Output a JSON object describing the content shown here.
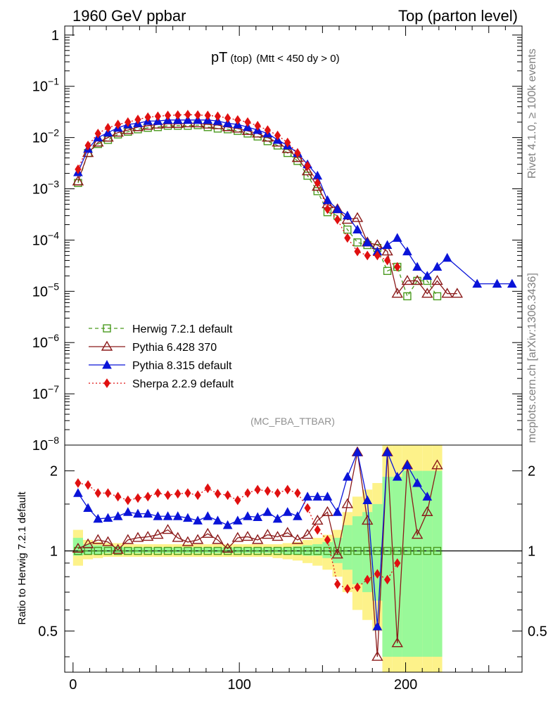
{
  "header": {
    "left": "1960 GeV ppbar",
    "right": "Top (parton level)"
  },
  "side": {
    "rivet": "Rivet 4.1.0, ≥ 100k events",
    "mcplots": "mcplots.cern.ch [arXiv:1306.3436]"
  },
  "colors": {
    "herwig": "#4a9a1e",
    "pythia6": "#8b1a1a",
    "pythia8": "#0a14d8",
    "sherpa": "#e01010",
    "band_inner": "#99f999",
    "band_outer": "#fdf28a"
  },
  "chart_data": [
    {
      "type": "line",
      "name": "main",
      "title_main": "pT",
      "title_sub": "(top)",
      "title_cut": "(Mtt < 450 dy > 0)",
      "watermark": "(MC_FBA_TTBAR)",
      "yscale": "log",
      "ylim": [
        1e-08,
        1.5
      ],
      "xlim": [
        -5,
        270
      ],
      "yticks": [
        {
          "v": 1,
          "label": "1"
        },
        {
          "v": 0.1,
          "label": "10",
          "sup": "−1"
        },
        {
          "v": 0.01,
          "label": "10",
          "sup": "−2"
        },
        {
          "v": 0.001,
          "label": "10",
          "sup": "−3"
        },
        {
          "v": 0.0001,
          "label": "10",
          "sup": "−4"
        },
        {
          "v": 1e-05,
          "label": "10",
          "sup": "−5"
        },
        {
          "v": 1e-06,
          "label": "10",
          "sup": "−6"
        },
        {
          "v": 1e-07,
          "label": "10",
          "sup": "−7"
        },
        {
          "v": 1e-08,
          "label": "10",
          "sup": "−8"
        }
      ],
      "legend": [
        {
          "key": "herwig",
          "label": "Herwig 7.2.1 default"
        },
        {
          "key": "pythia6",
          "label": "Pythia 6.428 370"
        },
        {
          "key": "pythia8",
          "label": "Pythia 8.315 default"
        },
        {
          "key": "sherpa",
          "label": "Sherpa 2.2.9 default"
        }
      ],
      "series": [
        {
          "key": "herwig",
          "name": "Herwig 7.2.1 default",
          "x": [
            3,
            9,
            15,
            21,
            27,
            33,
            39,
            45,
            51,
            57,
            63,
            69,
            75,
            81,
            87,
            93,
            99,
            105,
            111,
            117,
            123,
            129,
            135,
            141,
            147,
            153,
            159,
            165,
            171,
            177,
            183,
            189,
            195,
            201,
            207,
            213,
            219
          ],
          "y": [
            0.0013,
            0.005,
            0.0075,
            0.009,
            0.0115,
            0.013,
            0.0145,
            0.0155,
            0.016,
            0.017,
            0.017,
            0.017,
            0.0175,
            0.016,
            0.015,
            0.0145,
            0.0135,
            0.012,
            0.0105,
            0.0085,
            0.007,
            0.005,
            0.0035,
            0.0018,
            0.0009,
            0.00035,
            0.0003,
            0.00016,
            9e-05,
            8e-05,
            7e-05,
            2.5e-05,
            3e-05,
            8e-06,
            1.6e-05,
            1.6e-05,
            8e-06
          ]
        },
        {
          "key": "pythia6",
          "name": "Pythia 6.428 370",
          "x": [
            3,
            9,
            15,
            21,
            27,
            33,
            39,
            45,
            51,
            57,
            63,
            69,
            75,
            81,
            87,
            93,
            99,
            105,
            111,
            117,
            123,
            129,
            135,
            141,
            147,
            153,
            159,
            165,
            171,
            177,
            183,
            189,
            195,
            201,
            207,
            213,
            219,
            225,
            231
          ],
          "y": [
            0.0014,
            0.005,
            0.008,
            0.01,
            0.0125,
            0.014,
            0.016,
            0.017,
            0.018,
            0.0185,
            0.0185,
            0.019,
            0.019,
            0.018,
            0.0175,
            0.016,
            0.015,
            0.0135,
            0.012,
            0.01,
            0.008,
            0.006,
            0.004,
            0.0022,
            0.0011,
            0.0005,
            0.0004,
            0.00025,
            0.00027,
            9e-05,
            8e-05,
            6e-05,
            9e-06,
            1.6e-05,
            1.6e-05,
            9e-06,
            1.6e-05,
            9e-06,
            9e-06
          ]
        },
        {
          "key": "pythia8",
          "name": "Pythia 8.315 default",
          "x": [
            3,
            9,
            15,
            21,
            27,
            33,
            39,
            45,
            51,
            57,
            63,
            69,
            75,
            81,
            87,
            93,
            99,
            105,
            111,
            117,
            123,
            129,
            135,
            141,
            147,
            153,
            159,
            165,
            171,
            177,
            183,
            189,
            195,
            201,
            207,
            213,
            219,
            225,
            243,
            255,
            264
          ],
          "y": [
            0.0021,
            0.006,
            0.01,
            0.0125,
            0.0155,
            0.018,
            0.019,
            0.021,
            0.021,
            0.022,
            0.022,
            0.022,
            0.022,
            0.022,
            0.021,
            0.019,
            0.018,
            0.016,
            0.014,
            0.012,
            0.009,
            0.007,
            0.005,
            0.003,
            0.0018,
            0.0006,
            0.0004,
            0.0003,
            0.00016,
            9e-05,
            6e-05,
            8e-05,
            0.00011,
            6e-05,
            3e-05,
            2e-05,
            3e-05,
            4.5e-05,
            1.4e-05,
            1.4e-05,
            1.4e-05
          ]
        },
        {
          "key": "sherpa",
          "name": "Sherpa 2.2.9 default",
          "x": [
            3,
            9,
            15,
            21,
            27,
            33,
            39,
            45,
            51,
            57,
            63,
            69,
            75,
            81,
            87,
            93,
            99,
            105,
            111,
            117,
            123,
            129,
            135,
            141,
            147,
            153,
            159,
            165,
            171,
            177,
            183,
            189,
            195
          ],
          "y": [
            0.0024,
            0.007,
            0.012,
            0.0155,
            0.018,
            0.02,
            0.0225,
            0.025,
            0.026,
            0.027,
            0.0275,
            0.028,
            0.0275,
            0.027,
            0.026,
            0.024,
            0.022,
            0.02,
            0.017,
            0.014,
            0.011,
            0.008,
            0.005,
            0.0028,
            0.0013,
            0.0004,
            0.00025,
            0.00011,
            6e-05,
            5e-05,
            5e-05,
            4e-05,
            3e-05
          ]
        }
      ]
    },
    {
      "type": "line",
      "name": "ratio",
      "ylabel": "Ratio to Herwig 7.2.1 default",
      "yscale": "log",
      "ylim": [
        0.35,
        2.5
      ],
      "xlim": [
        -5,
        270
      ],
      "reference": 1,
      "yticks": [
        {
          "v": 0.5,
          "label": "0.5"
        },
        {
          "v": 1,
          "label": "1"
        },
        {
          "v": 2,
          "label": "2"
        }
      ],
      "xticks": [
        {
          "v": 0,
          "label": "0"
        },
        {
          "v": 100,
          "label": "100"
        },
        {
          "v": 200,
          "label": "200"
        }
      ],
      "band_x": [
        0,
        6,
        12,
        18,
        24,
        30,
        36,
        42,
        48,
        54,
        60,
        66,
        72,
        78,
        84,
        90,
        96,
        102,
        108,
        114,
        120,
        126,
        132,
        138,
        144,
        150,
        156,
        162,
        168,
        174,
        180,
        186,
        192,
        198,
        204,
        210,
        216,
        222
      ],
      "band_inner": [
        [
          0.96,
          1.12
        ],
        [
          0.97,
          1.06
        ],
        [
          0.97,
          1.05
        ],
        [
          0.98,
          1.04
        ],
        [
          0.98,
          1.04
        ],
        [
          0.98,
          1.03
        ],
        [
          0.98,
          1.03
        ],
        [
          0.98,
          1.03
        ],
        [
          0.98,
          1.03
        ],
        [
          0.98,
          1.03
        ],
        [
          0.98,
          1.03
        ],
        [
          0.98,
          1.03
        ],
        [
          0.98,
          1.03
        ],
        [
          0.98,
          1.03
        ],
        [
          0.98,
          1.03
        ],
        [
          0.98,
          1.03
        ],
        [
          0.98,
          1.03
        ],
        [
          0.98,
          1.03
        ],
        [
          0.98,
          1.03
        ],
        [
          0.98,
          1.03
        ],
        [
          0.98,
          1.03
        ],
        [
          0.97,
          1.03
        ],
        [
          0.97,
          1.04
        ],
        [
          0.96,
          1.05
        ],
        [
          0.96,
          1.06
        ],
        [
          0.94,
          1.08
        ],
        [
          0.9,
          1.12
        ],
        [
          0.85,
          1.25
        ],
        [
          0.75,
          1.35
        ],
        [
          0.7,
          1.4
        ],
        [
          0.65,
          1.5
        ],
        [
          0.4,
          1.9
        ],
        [
          0.4,
          1.9
        ],
        [
          0.4,
          2
        ],
        [
          0.4,
          2
        ],
        [
          0.4,
          2
        ],
        [
          0.4,
          2
        ]
      ],
      "band_outer": [
        [
          0.88,
          1.2
        ],
        [
          0.93,
          1.1
        ],
        [
          0.94,
          1.08
        ],
        [
          0.95,
          1.07
        ],
        [
          0.95,
          1.07
        ],
        [
          0.95,
          1.06
        ],
        [
          0.95,
          1.06
        ],
        [
          0.95,
          1.06
        ],
        [
          0.95,
          1.06
        ],
        [
          0.95,
          1.06
        ],
        [
          0.95,
          1.06
        ],
        [
          0.95,
          1.06
        ],
        [
          0.95,
          1.06
        ],
        [
          0.95,
          1.06
        ],
        [
          0.95,
          1.06
        ],
        [
          0.95,
          1.06
        ],
        [
          0.95,
          1.06
        ],
        [
          0.95,
          1.06
        ],
        [
          0.95,
          1.06
        ],
        [
          0.95,
          1.06
        ],
        [
          0.94,
          1.06
        ],
        [
          0.93,
          1.07
        ],
        [
          0.92,
          1.08
        ],
        [
          0.9,
          1.1
        ],
        [
          0.88,
          1.12
        ],
        [
          0.85,
          1.15
        ],
        [
          0.8,
          1.2
        ],
        [
          0.7,
          1.4
        ],
        [
          0.6,
          1.6
        ],
        [
          0.55,
          1.7
        ],
        [
          0.5,
          1.8
        ],
        [
          0.35,
          2.5
        ],
        [
          0.35,
          2.5
        ],
        [
          0.35,
          2.5
        ],
        [
          0.35,
          2.5
        ],
        [
          0.35,
          2.5
        ],
        [
          0.35,
          2.5
        ]
      ],
      "series": [
        {
          "key": "herwig",
          "name": "Herwig 7.2.1 default",
          "x": [
            3,
            9,
            15,
            21,
            27,
            33,
            39,
            45,
            51,
            57,
            63,
            69,
            75,
            81,
            87,
            93,
            99,
            105,
            111,
            117,
            123,
            129,
            135,
            141,
            147,
            153,
            159,
            165,
            171,
            177,
            183,
            189,
            195,
            201,
            207,
            213,
            219
          ],
          "y": [
            1,
            1,
            1,
            1,
            1,
            1,
            1,
            1,
            1,
            1,
            1,
            1,
            1,
            1,
            1,
            1,
            1,
            1,
            1,
            1,
            1,
            1,
            1,
            1,
            1,
            1,
            1,
            1,
            1,
            1,
            1,
            1,
            1,
            1,
            1,
            1,
            1
          ]
        },
        {
          "key": "pythia6",
          "name": "Pythia 6.428 370",
          "x": [
            3,
            9,
            15,
            21,
            27,
            33,
            39,
            45,
            51,
            57,
            63,
            69,
            75,
            81,
            87,
            93,
            99,
            105,
            111,
            117,
            123,
            129,
            135,
            141,
            147,
            153,
            159,
            165,
            171,
            177,
            183,
            189,
            195,
            201,
            207,
            213,
            219
          ],
          "y": [
            1.02,
            1.06,
            1.1,
            1.08,
            1.01,
            1.1,
            1.12,
            1.13,
            1.15,
            1.2,
            1.12,
            1.08,
            1.1,
            1.16,
            1.1,
            1.02,
            1.12,
            1.13,
            1.1,
            1.15,
            1.13,
            1.17,
            1.1,
            1.15,
            1.3,
            1.4,
            0.97,
            1.5,
            2.35,
            1.3,
            0.4,
            2.35,
            0.45,
            2.1,
            1.15,
            1.4,
            2.1
          ]
        },
        {
          "key": "pythia8",
          "name": "Pythia 8.315 default",
          "x": [
            3,
            9,
            15,
            21,
            27,
            33,
            39,
            45,
            51,
            57,
            63,
            69,
            75,
            81,
            87,
            93,
            99,
            105,
            111,
            117,
            123,
            129,
            135,
            141,
            147,
            153,
            159,
            165,
            171,
            177,
            183,
            189,
            195,
            201,
            207,
            213
          ],
          "y": [
            1.65,
            1.45,
            1.32,
            1.33,
            1.35,
            1.4,
            1.38,
            1.38,
            1.35,
            1.35,
            1.35,
            1.33,
            1.3,
            1.35,
            1.3,
            1.25,
            1.3,
            1.35,
            1.34,
            1.4,
            1.32,
            1.4,
            1.35,
            1.6,
            1.6,
            1.6,
            1.4,
            1.9,
            2.35,
            1.55,
            0.52,
            2.35,
            1.9,
            2.1,
            1.8,
            1.6
          ]
        },
        {
          "key": "sherpa",
          "name": "Sherpa 2.2.9 default",
          "x": [
            3,
            9,
            15,
            21,
            27,
            33,
            39,
            45,
            51,
            57,
            63,
            69,
            75,
            81,
            87,
            93,
            99,
            105,
            111,
            117,
            123,
            129,
            135,
            141,
            147,
            153,
            159,
            165,
            171,
            177,
            183,
            189,
            195
          ],
          "y": [
            1.8,
            1.77,
            1.65,
            1.65,
            1.6,
            1.55,
            1.58,
            1.6,
            1.65,
            1.62,
            1.64,
            1.65,
            1.62,
            1.72,
            1.64,
            1.62,
            1.55,
            1.65,
            1.7,
            1.68,
            1.65,
            1.7,
            1.65,
            1.45,
            1.2,
            1.1,
            0.75,
            0.72,
            0.73,
            0.78,
            0.82,
            0.78,
            0.9
          ]
        }
      ]
    }
  ]
}
